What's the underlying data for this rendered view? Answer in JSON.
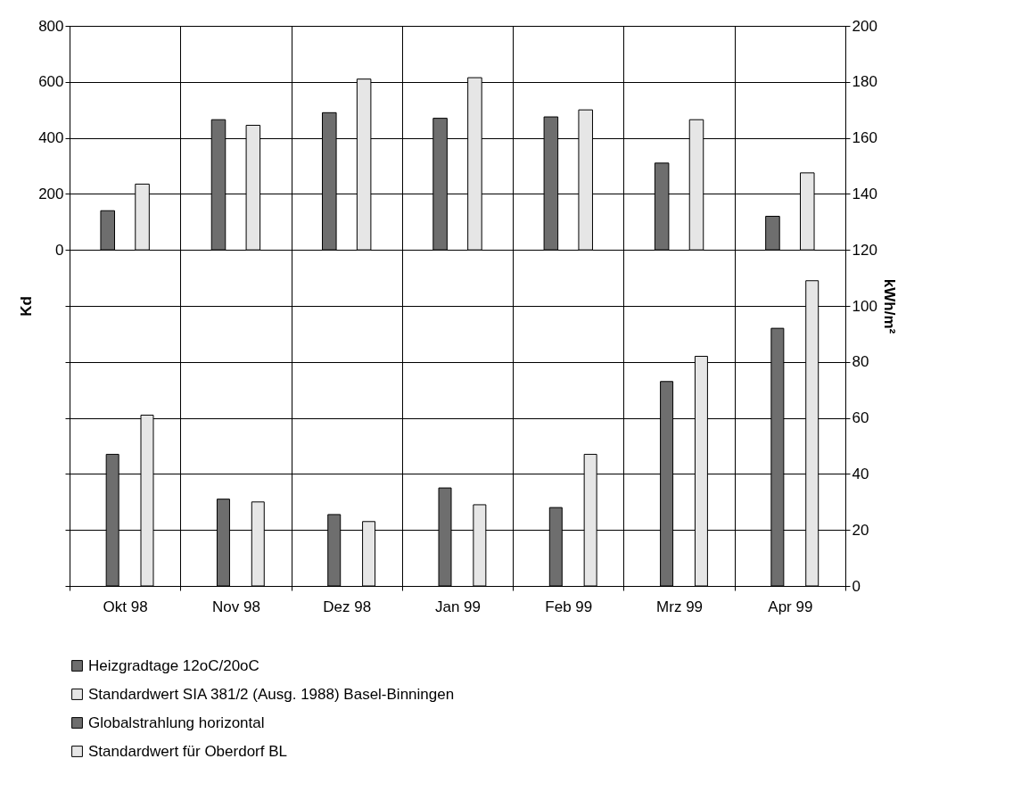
{
  "chart_data": {
    "type": "bar",
    "categories": [
      "Okt 98",
      "Nov 98",
      "Dez 98",
      "Jan 99",
      "Feb 99",
      "Mrz 99",
      "Apr 99"
    ],
    "ylabel": "Kd",
    "y2label": "kWh/m²",
    "ylim": [
      -1200,
      800
    ],
    "yticks": [
      {
        "value": -1200,
        "label": null
      },
      {
        "value": -1000,
        "label": null
      },
      {
        "value": -800,
        "label": null
      },
      {
        "value": -600,
        "label": null
      },
      {
        "value": -400,
        "label": null
      },
      {
        "value": -200,
        "label": null
      },
      0,
      200,
      400,
      600,
      800
    ],
    "y2lim": [
      0,
      200
    ],
    "y2ticks": [
      0,
      20,
      40,
      60,
      80,
      100,
      120,
      140,
      160,
      180,
      200
    ],
    "series": [
      {
        "name": "Heizgradtage 12oC/20oC",
        "color": "#6e6e6e",
        "values": [
          140,
          465,
          490,
          470,
          475,
          310,
          120
        ]
      },
      {
        "name": "Standardwert SIA 381/2 (Ausg. 1988) Basel-Binningen",
        "color": "#e6e6e6",
        "values": [
          235,
          445,
          610,
          615,
          500,
          465,
          275
        ]
      },
      {
        "name": "Globalstrahlung horizontal",
        "color": "#6e6e6e",
        "axis": "y2",
        "values": [
          47,
          31,
          25.5,
          35,
          28,
          73,
          92
        ]
      },
      {
        "name": "Standardwert für Oberdorf BL",
        "color": "#e6e6e6",
        "axis": "y2",
        "values": [
          61,
          30,
          23,
          29,
          47,
          82,
          109
        ]
      }
    ],
    "grid": true,
    "legend": "bottom"
  }
}
